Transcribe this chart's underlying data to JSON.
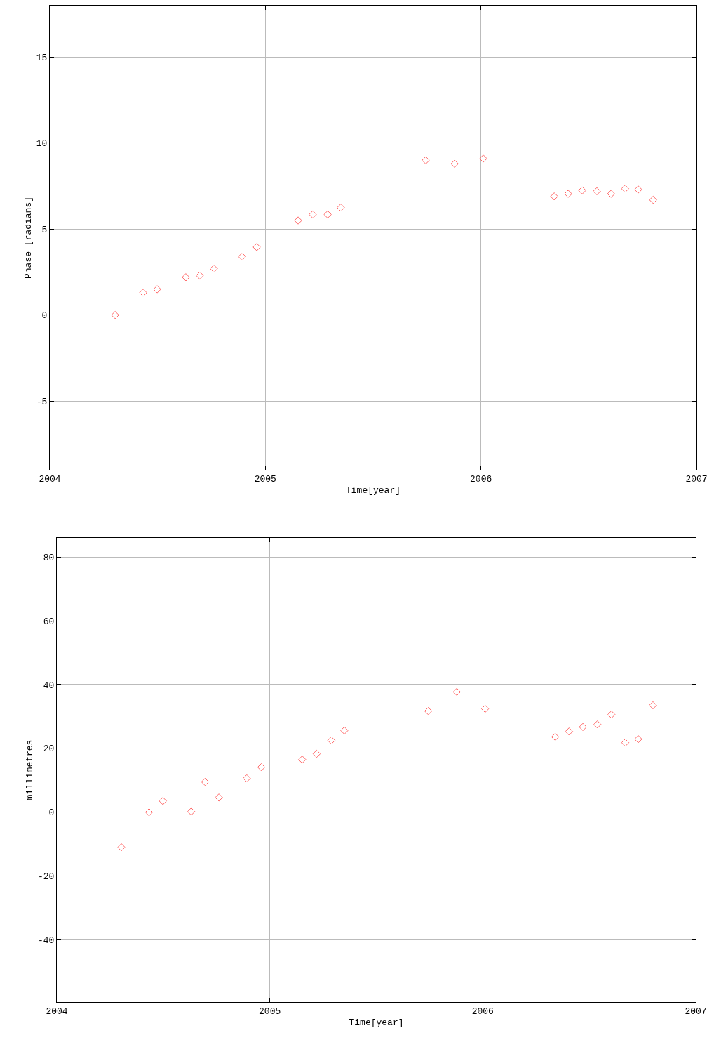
{
  "chart_data": [
    {
      "type": "scatter",
      "xlabel": "Time[year]",
      "ylabel": "Phase [radians]",
      "marker": "diamond",
      "grid": true,
      "xlim": [
        2004,
        2007
      ],
      "xticks": [
        2004,
        2005,
        2006,
        2007
      ],
      "ylim": [
        -9,
        18
      ],
      "yticks": [
        -5,
        0,
        5,
        10,
        15
      ],
      "series": [
        {
          "color": "#ff6666",
          "x": [
            2004.303,
            2004.433,
            2004.498,
            2004.631,
            2004.696,
            2004.761,
            2004.892,
            2004.96,
            2005.152,
            2005.22,
            2005.289,
            2005.35,
            2005.744,
            2005.878,
            2006.011,
            2006.34,
            2006.405,
            2006.47,
            2006.538,
            2006.604,
            2006.669,
            2006.73,
            2006.799
          ],
          "values": [
            0,
            1.3,
            1.5,
            2.2,
            2.3,
            2.7,
            3.4,
            3.95,
            5.5,
            5.85,
            5.85,
            6.25,
            9.0,
            8.8,
            9.1,
            6.9,
            7.05,
            7.25,
            7.2,
            7.05,
            7.35,
            7.3,
            6.7
          ]
        }
      ]
    },
    {
      "type": "scatter",
      "xlabel": "Time[year]",
      "ylabel": "millimetres",
      "marker": "diamond",
      "grid": true,
      "xlim": [
        2004,
        2007
      ],
      "xticks": [
        2004,
        2005,
        2006,
        2007
      ],
      "ylim": [
        -59.5,
        86
      ],
      "yticks": [
        -40,
        -20,
        0,
        20,
        40,
        60,
        80
      ],
      "series": [
        {
          "color": "#ff6666",
          "x": [
            2004.303,
            2004.433,
            2004.498,
            2004.631,
            2004.696,
            2004.761,
            2004.892,
            2004.96,
            2005.152,
            2005.22,
            2005.289,
            2005.35,
            2005.744,
            2005.878,
            2006.011,
            2006.34,
            2006.405,
            2006.47,
            2006.538,
            2006.604,
            2006.669,
            2006.73,
            2006.799
          ],
          "values": [
            -11,
            0,
            3.5,
            0.2,
            9.5,
            4.6,
            10.6,
            14.1,
            16.5,
            18.3,
            22.5,
            25.6,
            31.7,
            37.7,
            32.4,
            23.6,
            25.3,
            26.7,
            27.5,
            30.6,
            21.8,
            22.9,
            33.5
          ]
        }
      ]
    }
  ]
}
